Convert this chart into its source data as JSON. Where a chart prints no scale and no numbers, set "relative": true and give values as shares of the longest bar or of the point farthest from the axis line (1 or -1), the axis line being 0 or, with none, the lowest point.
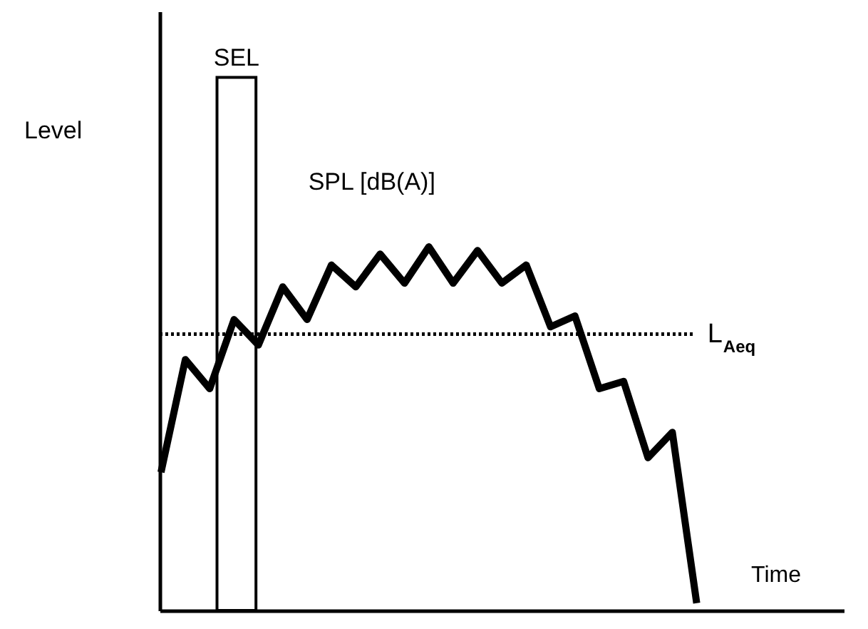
{
  "chart_data": {
    "type": "line",
    "relative": true,
    "xlabel": "Time",
    "annotations": [
      "Level",
      "SEL"
    ],
    "tick_labels": false,
    "grid": false,
    "legend": false,
    "marker": "none",
    "line_style": "solid",
    "categories": [
      null,
      null,
      null,
      null,
      null,
      null,
      null,
      null,
      null,
      null,
      null,
      null,
      null,
      null,
      null,
      null,
      null,
      null,
      null,
      null,
      null,
      null,
      null
    ],
    "series": [
      {
        "name": "SPL [dB(A)]",
        "color": "#000000",
        "values": [
          0.38,
          0.69,
          0.61,
          0.8,
          0.73,
          0.89,
          0.8,
          0.95,
          0.89,
          0.98,
          0.9,
          1.0,
          0.9,
          0.99,
          0.9,
          0.95,
          0.78,
          0.81,
          0.61,
          0.63,
          0.42,
          0.49,
          0.02
        ]
      }
    ],
    "ref_lines": [
      {
        "axis": "y",
        "value": 0.76,
        "label": "L$_{Aeq}$",
        "line_style": "dotted",
        "color": "#000000"
      }
    ]
  }
}
